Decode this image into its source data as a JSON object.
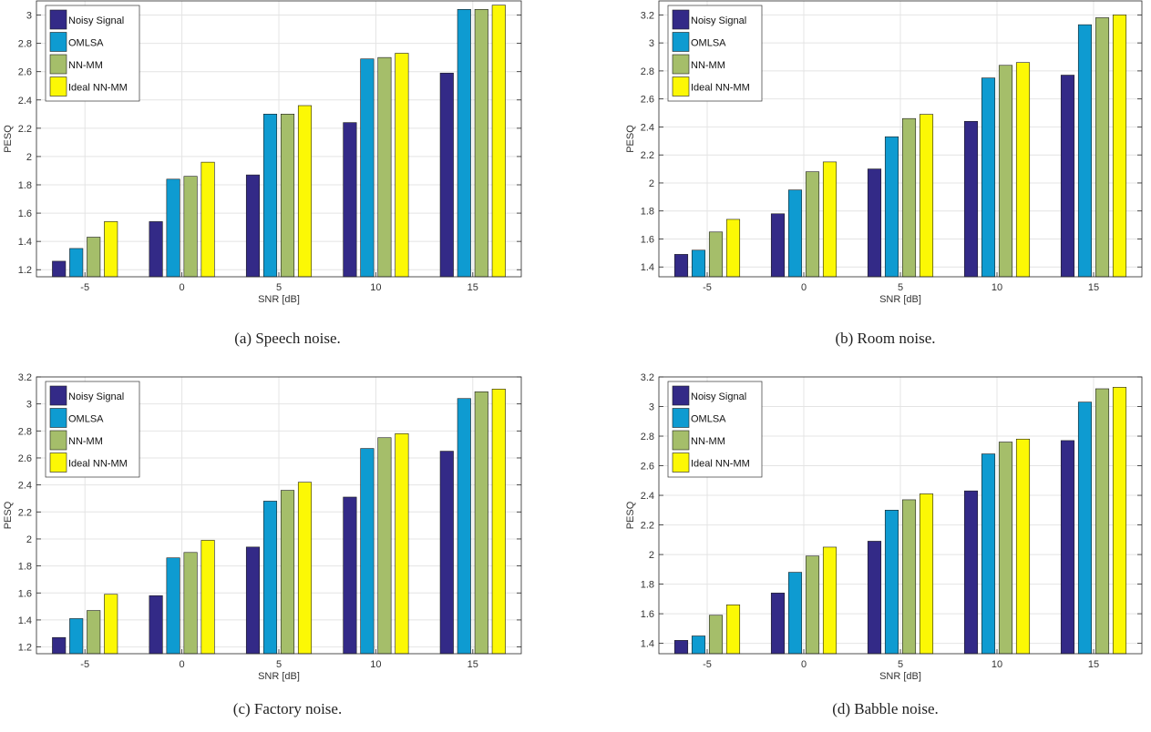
{
  "chart_data": [
    {
      "type": "bar",
      "caption": "(a) Speech noise.",
      "xlabel": "SNR [dB]",
      "ylabel": "PESQ",
      "categories": [
        "-5",
        "0",
        "5",
        "10",
        "15"
      ],
      "ylim": [
        1.15,
        3.1
      ],
      "yticks": [
        "1.2",
        "1.4",
        "1.6",
        "1.8",
        "2",
        "2.2",
        "2.4",
        "2.6",
        "2.8",
        "3"
      ],
      "grid": true,
      "legend": "top-left",
      "series": [
        {
          "name": "Noisy Signal",
          "color": "#332a87",
          "values": [
            1.26,
            1.54,
            1.87,
            2.24,
            2.59
          ]
        },
        {
          "name": "OMLSA",
          "color": "#0e9bd1",
          "values": [
            1.35,
            1.84,
            2.3,
            2.69,
            3.04
          ]
        },
        {
          "name": "NN-MM",
          "color": "#a5be6a",
          "values": [
            1.43,
            1.86,
            2.3,
            2.7,
            3.04
          ]
        },
        {
          "name": "Ideal NN-MM",
          "color": "#fcf805",
          "values": [
            1.54,
            1.96,
            2.36,
            2.73,
            3.07
          ]
        }
      ]
    },
    {
      "type": "bar",
      "caption": "(b) Room noise.",
      "xlabel": "SNR [dB]",
      "ylabel": "PESQ",
      "categories": [
        "-5",
        "0",
        "5",
        "10",
        "15"
      ],
      "ylim": [
        1.33,
        3.3
      ],
      "yticks": [
        "1.4",
        "1.6",
        "1.8",
        "2",
        "2.2",
        "2.4",
        "2.6",
        "2.8",
        "3",
        "3.2"
      ],
      "grid": true,
      "legend": "top-left",
      "series": [
        {
          "name": "Noisy Signal",
          "color": "#332a87",
          "values": [
            1.49,
            1.78,
            2.1,
            2.44,
            2.77
          ]
        },
        {
          "name": "OMLSA",
          "color": "#0e9bd1",
          "values": [
            1.52,
            1.95,
            2.33,
            2.75,
            3.13
          ]
        },
        {
          "name": "NN-MM",
          "color": "#a5be6a",
          "values": [
            1.65,
            2.08,
            2.46,
            2.84,
            3.18
          ]
        },
        {
          "name": "Ideal NN-MM",
          "color": "#fcf805",
          "values": [
            1.74,
            2.15,
            2.49,
            2.86,
            3.2
          ]
        }
      ]
    },
    {
      "type": "bar",
      "caption": "(c) Factory noise.",
      "xlabel": "SNR [dB]",
      "ylabel": "PESQ",
      "categories": [
        "-5",
        "0",
        "5",
        "10",
        "15"
      ],
      "ylim": [
        1.15,
        3.2
      ],
      "yticks": [
        "1.2",
        "1.4",
        "1.6",
        "1.8",
        "2",
        "2.2",
        "2.4",
        "2.6",
        "2.8",
        "3",
        "3.2"
      ],
      "grid": true,
      "legend": "top-left",
      "series": [
        {
          "name": "Noisy Signal",
          "color": "#332a87",
          "values": [
            1.27,
            1.58,
            1.94,
            2.31,
            2.65
          ]
        },
        {
          "name": "OMLSA",
          "color": "#0e9bd1",
          "values": [
            1.41,
            1.86,
            2.28,
            2.67,
            3.04
          ]
        },
        {
          "name": "NN-MM",
          "color": "#a5be6a",
          "values": [
            1.47,
            1.9,
            2.36,
            2.75,
            3.09
          ]
        },
        {
          "name": "Ideal NN-MM",
          "color": "#fcf805",
          "values": [
            1.59,
            1.99,
            2.42,
            2.78,
            3.11
          ]
        }
      ]
    },
    {
      "type": "bar",
      "caption": "(d) Babble noise.",
      "xlabel": "SNR [dB]",
      "ylabel": "PESQ",
      "categories": [
        "-5",
        "0",
        "5",
        "10",
        "15"
      ],
      "ylim": [
        1.33,
        3.2
      ],
      "yticks": [
        "1.4",
        "1.6",
        "1.8",
        "2",
        "2.2",
        "2.4",
        "2.6",
        "2.8",
        "3",
        "3.2"
      ],
      "grid": true,
      "legend": "top-left",
      "series": [
        {
          "name": "Noisy Signal",
          "color": "#332a87",
          "values": [
            1.42,
            1.74,
            2.09,
            2.43,
            2.77
          ]
        },
        {
          "name": "OMLSA",
          "color": "#0e9bd1",
          "values": [
            1.45,
            1.88,
            2.3,
            2.68,
            3.03
          ]
        },
        {
          "name": "NN-MM",
          "color": "#a5be6a",
          "values": [
            1.59,
            1.99,
            2.37,
            2.76,
            3.12
          ]
        },
        {
          "name": "Ideal NN-MM",
          "color": "#fcf805",
          "values": [
            1.66,
            2.05,
            2.41,
            2.78,
            3.13
          ]
        }
      ]
    }
  ]
}
